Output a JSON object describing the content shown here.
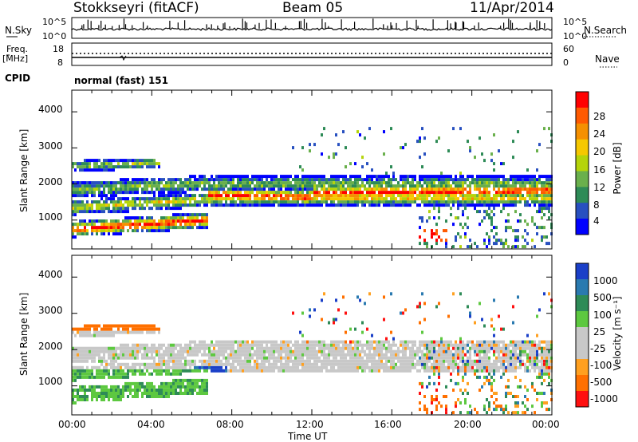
{
  "header": {
    "station": "Stokkseyri (fitACF)",
    "beam": "Beam 05",
    "date": "11/Apr/2014"
  },
  "top_panel": {
    "left_label": "N.Sky",
    "right_label": "N.Search",
    "left_ticks": [
      "10^5",
      "10^0"
    ],
    "right_ticks": [
      "10^5",
      "10^0"
    ]
  },
  "freq_panel": {
    "left_label_line1": "Freq.",
    "left_label_line2": "[MHz]",
    "right_label": "Nave",
    "left_ticks": [
      "18",
      "8"
    ],
    "right_ticks": [
      "60",
      "0"
    ]
  },
  "cpid": {
    "label": "CPID",
    "mode": "normal (fast) 151"
  },
  "chart_data": [
    {
      "type": "heatmap",
      "quantity": "Power",
      "ylabel": "Slant Range [km]",
      "yticks": [
        "1000",
        "2000",
        "3000",
        "4000"
      ],
      "ylim": [
        200,
        4600
      ],
      "colorbar_title": "Power [dB]",
      "colorbar_ticks": [
        "4",
        "8",
        "12",
        "16",
        "20",
        "24",
        "28"
      ],
      "colorbar_colors": [
        "#0000ff",
        "#2850c0",
        "#2e8b57",
        "#6ab04c",
        "#b5d40a",
        "#f5c800",
        "#f59000",
        "#ff5a00",
        "#ff0000"
      ]
    },
    {
      "type": "heatmap",
      "quantity": "Velocity",
      "ylabel": "Slant Range [km]",
      "yticks": [
        "1000",
        "2000",
        "3000",
        "4000"
      ],
      "ylim": [
        200,
        4600
      ],
      "colorbar_title": "Velocity [m s⁻¹]",
      "colorbar_ticks": [
        "1000",
        "500",
        "100",
        "25",
        "-25",
        "-100",
        "-500",
        "-1000"
      ],
      "colorbar_colors": [
        "#1a3fc8",
        "#2a7ab0",
        "#2e8b57",
        "#5dc840",
        "#c8c8c8",
        "#c8c8c8",
        "#ffa020",
        "#ff7000",
        "#ff1010"
      ]
    }
  ],
  "xaxis": {
    "label": "Time UT",
    "ticks": [
      "00:00",
      "04:00",
      "08:00",
      "12:00",
      "16:00",
      "20:00",
      "00:00"
    ]
  }
}
